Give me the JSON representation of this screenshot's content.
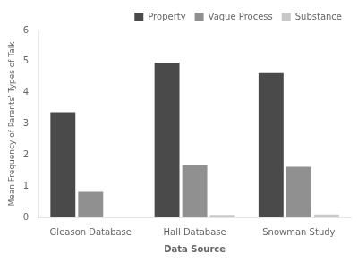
{
  "chart_data": {
    "type": "bar",
    "categories": [
      "Gleason Database",
      "Hall Database",
      "Snowman Study"
    ],
    "series": [
      {
        "name": "Property",
        "values": [
          3.37,
          4.97,
          4.63
        ],
        "color": "#4a4a4a"
      },
      {
        "name": "Vague Process",
        "values": [
          0.82,
          1.67,
          1.62
        ],
        "color": "#909090"
      },
      {
        "name": "Substance",
        "values": [
          0.0,
          0.08,
          0.09
        ],
        "color": "#c8c8c8"
      }
    ],
    "xlabel": "Data Source",
    "ylabel": "Mean Frequency of Parents' Types of Talk",
    "ylim": [
      0,
      6
    ],
    "yticks": [
      0,
      1,
      2,
      3,
      4,
      5,
      6
    ],
    "grid": false,
    "legend": "upper right"
  }
}
